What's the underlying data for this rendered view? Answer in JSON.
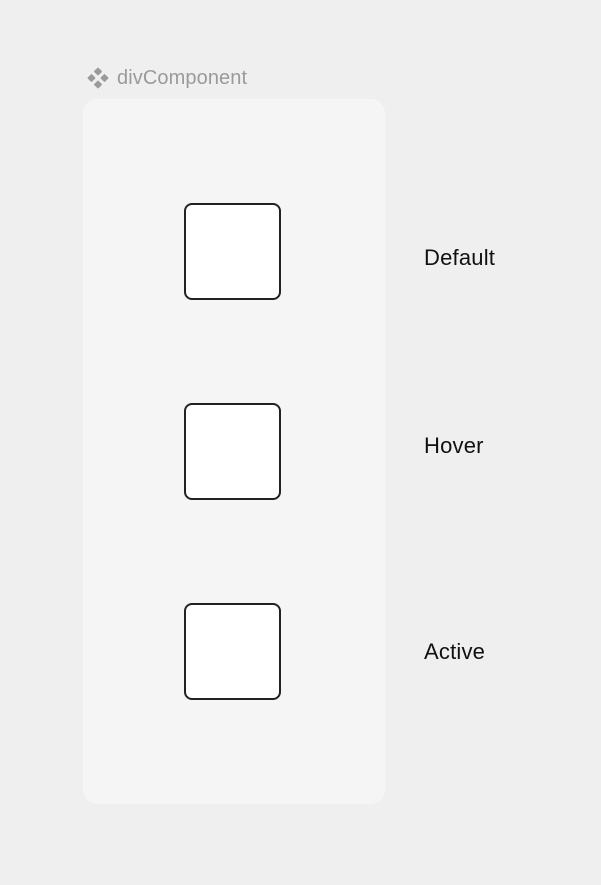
{
  "component": {
    "icon": "component-icon",
    "name": "divComponent"
  },
  "variants": [
    {
      "label": "Default"
    },
    {
      "label": "Hover"
    },
    {
      "label": "Active"
    }
  ],
  "colors": {
    "canvas_background": "#efefef",
    "frame_background": "#f5f5f5",
    "box_fill": "#ffffff",
    "box_border": "#222222",
    "header_text": "#9a9a9a",
    "label_text": "#111111"
  }
}
